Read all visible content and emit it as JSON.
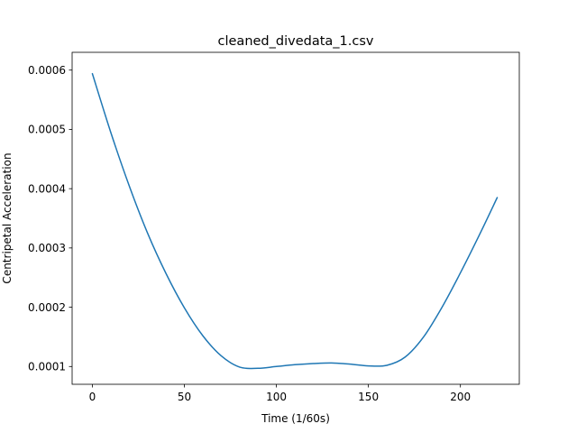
{
  "chart_data": {
    "type": "line",
    "title": "cleaned_divedata_1.csv",
    "xlabel": "Time (1/60s)",
    "ylabel": "Centripetal Acceleration",
    "xlim": [
      -11,
      232
    ],
    "ylim": [
      7e-05,
      0.00063
    ],
    "xticks": [
      0,
      50,
      100,
      150,
      200
    ],
    "yticks": [
      0.0001,
      0.0002,
      0.0003,
      0.0004,
      0.0005,
      0.0006
    ],
    "ytick_labels": [
      "0.0001",
      "0.0002",
      "0.0003",
      "0.0004",
      "0.0005",
      "0.0006"
    ],
    "grid": false,
    "legend": "none",
    "series": [
      {
        "color": "#1f77b4",
        "x": [
          0,
          10,
          20,
          30,
          40,
          50,
          60,
          70,
          80,
          90,
          100,
          110,
          120,
          130,
          140,
          150,
          160,
          170,
          180,
          190,
          200,
          210,
          220
        ],
        "y": [
          0.000594,
          0.000495,
          0.000405,
          0.000325,
          0.000257,
          0.000199,
          0.000152,
          0.000118,
          9.9e-05,
          9.7e-05,
          0.0001,
          0.000103,
          0.000105,
          0.000106,
          0.000104,
          0.000101,
          0.000102,
          0.000116,
          0.00015,
          0.0002,
          0.000258,
          0.00032,
          0.000385
        ]
      }
    ]
  }
}
